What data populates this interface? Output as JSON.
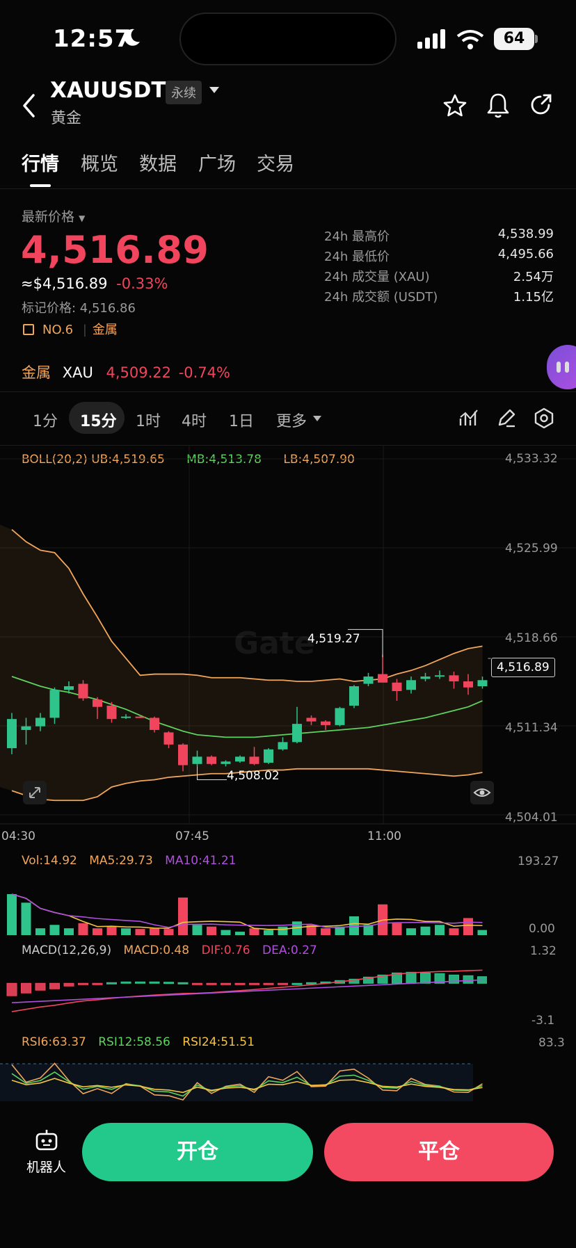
{
  "status_bar": {
    "time": "12:57",
    "battery": "64"
  },
  "header": {
    "symbol": "XAUUSDT",
    "contract_badge": "永续",
    "name": "黄金"
  },
  "tabs": [
    "行情",
    "概览",
    "数据",
    "广场",
    "交易"
  ],
  "price": {
    "label": "最新价格",
    "last": "4,516.89",
    "usd_equiv": "≈$4,516.89",
    "change": "-0.33%",
    "mark_price": "标记价格: 4,516.86",
    "rank_tag": "NO.6",
    "category_tag": "金属"
  },
  "stats": [
    {
      "label": "24h 最高价",
      "value": "4,538.99"
    },
    {
      "label": "24h 最低价",
      "value": "4,495.66"
    },
    {
      "label": "24h 成交量 (XAU)",
      "value": "2.54万"
    },
    {
      "label": "24h 成交额 (USDT)",
      "value": "1.15亿"
    }
  ],
  "related": {
    "category": "金属",
    "symbol": "XAU",
    "price": "4,509.22",
    "change": "-0.74%"
  },
  "intervals": [
    "1分",
    "15分",
    "1时",
    "4时",
    "1日",
    "更多"
  ],
  "active_interval": "15分",
  "boll": {
    "label": "BOLL(20,2)",
    "ub": "UB:4,519.65",
    "mb": "MB:4,513.78",
    "lb": "LB:4,507.90"
  },
  "price_axis": [
    "4,533.32",
    "4,525.99",
    "4,518.66",
    "4,511.34",
    "4,504.01"
  ],
  "time_axis": [
    "04:30",
    "07:45",
    "11:00"
  ],
  "current_price_tag": "4,516.89",
  "high_marker": "4,519.27",
  "low_marker": "4,508.02",
  "watermark": "Gate",
  "vol": {
    "vol": "Vol:14.92",
    "ma5": "MA5:29.73",
    "ma10": "MA10:41.21",
    "max": "193.27",
    "min": "0.00"
  },
  "macd": {
    "label": "MACD(12,26,9)",
    "macd": "MACD:0.48",
    "dif": "DIF:0.76",
    "dea": "DEA:0.27",
    "max": "1.32",
    "min": "-3.1"
  },
  "rsi": {
    "rsi6": "RSI6:63.37",
    "rsi12": "RSI12:58.56",
    "rsi24": "RSI24:51.51",
    "max": "83.3"
  },
  "bottom": {
    "robot": "机器人",
    "open": "开仓",
    "close": "平仓"
  },
  "colors": {
    "up": "#2ec48b",
    "down": "#f0455d",
    "boll_band": "#f2a65a",
    "mid_line": "#5fd35f",
    "accent_purple": "#b04fe0"
  },
  "chart_data": {
    "type": "candlestick",
    "interval": "15分",
    "ylim": [
      4504.01,
      4533.32
    ],
    "candles": [
      {
        "o": 4509.5,
        "h": 4512.4,
        "l": 4509.0,
        "c": 4511.9
      },
      {
        "o": 4511.0,
        "h": 4512.0,
        "l": 4509.8,
        "c": 4511.3
      },
      {
        "o": 4511.3,
        "h": 4512.4,
        "l": 4510.9,
        "c": 4512.0
      },
      {
        "o": 4512.0,
        "h": 4514.5,
        "l": 4511.5,
        "c": 4514.3
      },
      {
        "o": 4514.3,
        "h": 4515.0,
        "l": 4514.0,
        "c": 4514.6
      },
      {
        "o": 4514.8,
        "h": 4515.1,
        "l": 4513.4,
        "c": 4513.6
      },
      {
        "o": 4513.5,
        "h": 4513.7,
        "l": 4511.9,
        "c": 4512.9
      },
      {
        "o": 4513.0,
        "h": 4513.3,
        "l": 4511.6,
        "c": 4511.9
      },
      {
        "o": 4512.0,
        "h": 4512.3,
        "l": 4511.9,
        "c": 4512.1
      },
      {
        "o": 4512.1,
        "h": 4512.2,
        "l": 4512.0,
        "c": 4512.0
      },
      {
        "o": 4512.0,
        "h": 4512.1,
        "l": 4510.8,
        "c": 4511.0
      },
      {
        "o": 4510.8,
        "h": 4510.9,
        "l": 4509.5,
        "c": 4509.8
      },
      {
        "o": 4509.8,
        "h": 4509.9,
        "l": 4507.6,
        "c": 4508.1
      },
      {
        "o": 4508.2,
        "h": 4509.3,
        "l": 4508.0,
        "c": 4508.8
      },
      {
        "o": 4508.8,
        "h": 4508.9,
        "l": 4508.1,
        "c": 4508.2
      },
      {
        "o": 4508.2,
        "h": 4508.5,
        "l": 4508.0,
        "c": 4508.4
      },
      {
        "o": 4508.4,
        "h": 4508.9,
        "l": 4508.3,
        "c": 4508.8
      },
      {
        "o": 4508.8,
        "h": 4509.6,
        "l": 4508.1,
        "c": 4508.2
      },
      {
        "o": 4508.3,
        "h": 4509.5,
        "l": 4508.2,
        "c": 4509.4
      },
      {
        "o": 4509.4,
        "h": 4510.4,
        "l": 4509.3,
        "c": 4510.0
      },
      {
        "o": 4510.0,
        "h": 4512.9,
        "l": 4509.9,
        "c": 4511.5
      },
      {
        "o": 4512.0,
        "h": 4512.2,
        "l": 4511.4,
        "c": 4511.7
      },
      {
        "o": 4511.7,
        "h": 4511.8,
        "l": 4511.0,
        "c": 4511.4
      },
      {
        "o": 4511.4,
        "h": 4512.9,
        "l": 4511.3,
        "c": 4512.8
      },
      {
        "o": 4513.0,
        "h": 4514.7,
        "l": 4512.8,
        "c": 4514.6
      },
      {
        "o": 4514.8,
        "h": 4515.7,
        "l": 4514.6,
        "c": 4515.4
      },
      {
        "o": 4515.6,
        "h": 4517.2,
        "l": 4515.0,
        "c": 4514.9
      },
      {
        "o": 4514.9,
        "h": 4515.2,
        "l": 4513.4,
        "c": 4514.2
      },
      {
        "o": 4514.3,
        "h": 4515.4,
        "l": 4514.0,
        "c": 4515.1
      },
      {
        "o": 4515.2,
        "h": 4515.7,
        "l": 4515.0,
        "c": 4515.4
      },
      {
        "o": 4515.4,
        "h": 4515.9,
        "l": 4515.2,
        "c": 4515.5
      },
      {
        "o": 4515.5,
        "h": 4515.8,
        "l": 4514.4,
        "c": 4515.0
      },
      {
        "o": 4515.0,
        "h": 4515.6,
        "l": 4513.9,
        "c": 4514.5
      },
      {
        "o": 4514.6,
        "h": 4515.4,
        "l": 4514.4,
        "c": 4515.1
      }
    ],
    "boll_upper": [
      4527.5,
      4526.5,
      4525.8,
      4525.6,
      4524.3,
      4522.2,
      4520.3,
      4518.3,
      4516.9,
      4515.5,
      4515.6,
      4515.6,
      4515.6,
      4515.5,
      4515.3,
      4515.3,
      4515.3,
      4515.2,
      4515.1,
      4515.1,
      4515.0,
      4515.0,
      4515.1,
      4515.2,
      4515.0,
      4515.1,
      4515.2,
      4515.6,
      4515.9,
      4516.3,
      4516.8,
      4517.3,
      4517.7,
      4517.9
    ],
    "boll_mid": [
      4515.4,
      4515.0,
      4514.6,
      4514.3,
      4514.1,
      4513.8,
      4513.5,
      4513.1,
      4512.7,
      4512.2,
      4511.7,
      4511.3,
      4510.9,
      4510.6,
      4510.5,
      4510.4,
      4510.4,
      4510.4,
      4510.5,
      4510.6,
      4510.7,
      4510.8,
      4510.9,
      4511.0,
      4511.1,
      4511.2,
      4511.4,
      4511.6,
      4511.8,
      4512.0,
      4512.3,
      4512.6,
      4512.9,
      4513.4
    ],
    "boll_lower": [
      4506.0,
      4505.6,
      4505.3,
      4505.2,
      4505.2,
      4505.2,
      4505.5,
      4506.3,
      4506.6,
      4506.8,
      4506.9,
      4507.1,
      4507.2,
      4507.3,
      4507.4,
      4507.4,
      4507.5,
      4507.6,
      4507.7,
      4507.7,
      4507.8,
      4507.8,
      4507.8,
      4507.8,
      4507.8,
      4507.8,
      4507.7,
      4507.6,
      4507.5,
      4507.4,
      4507.3,
      4507.2,
      4507.3,
      4507.5
    ],
    "volume": [
      120,
      95,
      20,
      30,
      20,
      35,
      20,
      25,
      20,
      18,
      20,
      18,
      110,
      30,
      25,
      15,
      10,
      20,
      15,
      25,
      40,
      30,
      20,
      25,
      55,
      30,
      90,
      35,
      20,
      25,
      30,
      20,
      50,
      14.92
    ],
    "volume_ylim": [
      0,
      193.27
    ],
    "macd_hist": [
      -0.9,
      -0.7,
      -0.5,
      -0.4,
      -0.2,
      -0.05,
      -0.02,
      0.05,
      0.1,
      0.1,
      0.1,
      0.08,
      0.05,
      -0.05,
      -0.1,
      -0.1,
      -0.1,
      -0.08,
      -0.05,
      -0.03,
      0.0,
      0.05,
      0.1,
      0.2,
      0.3,
      0.45,
      0.6,
      0.75,
      0.8,
      0.75,
      0.7,
      0.6,
      0.55,
      0.48
    ],
    "macd_ylim": [
      -3.1,
      1.32
    ],
    "rsi_ylim": [
      0,
      100
    ],
    "rsi_max_label": 83.3
  }
}
